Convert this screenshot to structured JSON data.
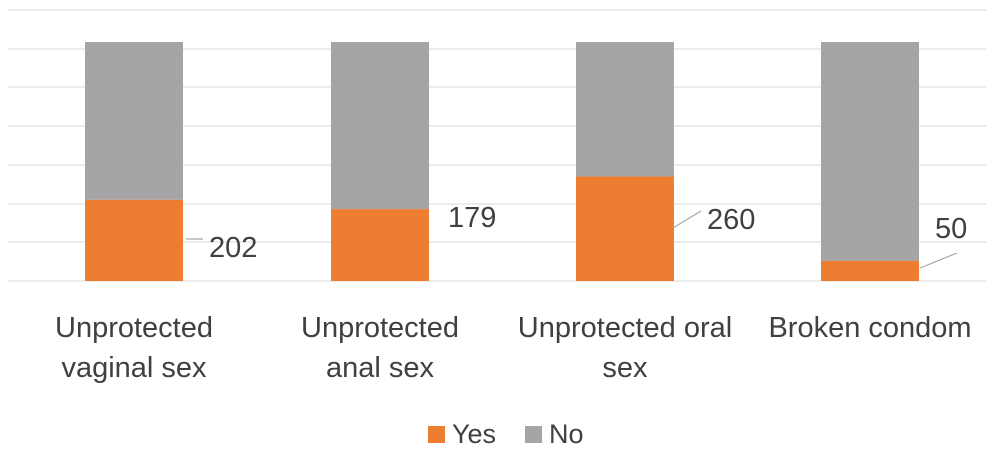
{
  "chart_data": {
    "type": "bar",
    "stacked": "percent",
    "categories": [
      [
        "Unprotected",
        "vaginal sex"
      ],
      [
        "Unprotected",
        "anal sex"
      ],
      [
        "Unprotected oral",
        "sex"
      ],
      [
        "Broken condom"
      ]
    ],
    "series": [
      {
        "name": "Yes",
        "values": [
          202,
          179,
          260,
          50
        ]
      },
      {
        "name": "No",
        "values": [
          393,
          416,
          335,
          545
        ]
      }
    ],
    "title": "",
    "xlabel": "",
    "ylabel": "",
    "ylim": [
      0,
      1
    ],
    "grid": true,
    "legend_position": "bottom",
    "data_labels_series": "Yes",
    "colors": {
      "Yes": "#ED7D31",
      "No": "#A5A5A5",
      "grid": "#D9D9D9",
      "text": "#404040",
      "leader": "#A6A6A6"
    }
  }
}
